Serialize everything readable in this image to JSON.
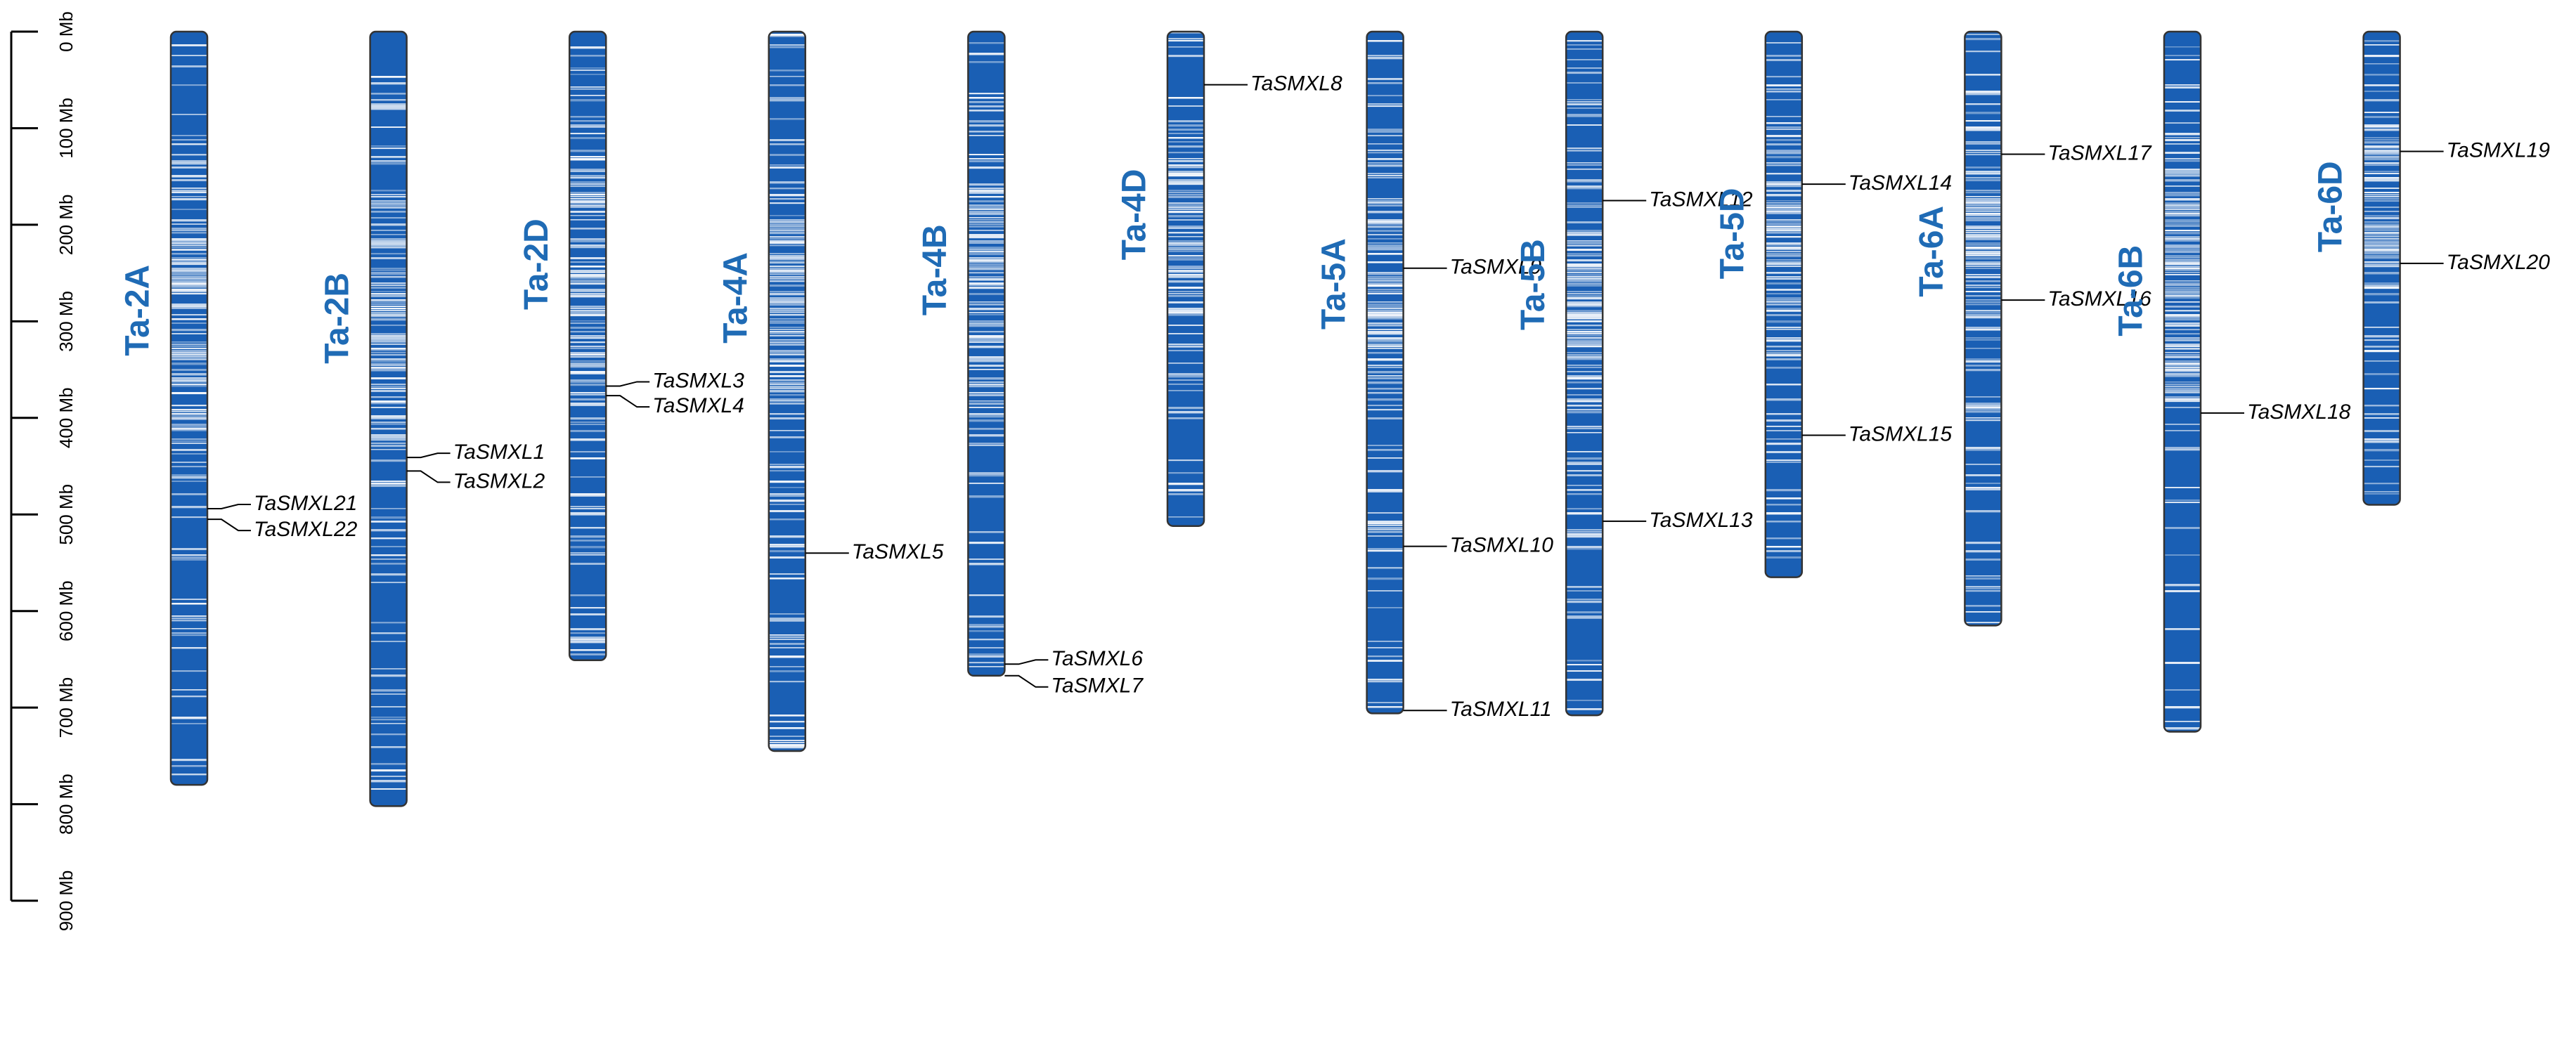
{
  "colors": {
    "label": "#1f6bb5",
    "density_high": "#1a5fb4",
    "density_low": "#ffffff",
    "outline": "#333333",
    "leader": "#000000"
  },
  "axis": {
    "unit": "Mb",
    "max": 900,
    "ticks": [
      {
        "value": 0,
        "label": "0 Mb"
      },
      {
        "value": 100,
        "label": "100 Mb"
      },
      {
        "value": 200,
        "label": "200 Mb"
      },
      {
        "value": 300,
        "label": "300 Mb"
      },
      {
        "value": 400,
        "label": "400 Mb"
      },
      {
        "value": 500,
        "label": "500 Mb"
      },
      {
        "value": 600,
        "label": "600 Mb"
      },
      {
        "value": 700,
        "label": "700 Mb"
      },
      {
        "value": 800,
        "label": "800 Mb"
      },
      {
        "value": 900,
        "label": "900 Mb"
      }
    ]
  },
  "chromosomes": [
    {
      "name": "Ta-2A",
      "length": 780,
      "genes": [
        {
          "name": "TaSMXL21",
          "pos": 494
        },
        {
          "name": "TaSMXL22",
          "pos": 505
        }
      ]
    },
    {
      "name": "Ta-2B",
      "length": 802,
      "genes": [
        {
          "name": "TaSMXL1",
          "pos": 441
        },
        {
          "name": "TaSMXL2",
          "pos": 455
        }
      ]
    },
    {
      "name": "Ta-2D",
      "length": 651,
      "genes": [
        {
          "name": "TaSMXL3",
          "pos": 367
        },
        {
          "name": "TaSMXL4",
          "pos": 377
        }
      ]
    },
    {
      "name": "Ta-4A",
      "length": 745,
      "genes": [
        {
          "name": "TaSMXL5",
          "pos": 540
        }
      ]
    },
    {
      "name": "Ta-4B",
      "length": 667,
      "genes": [
        {
          "name": "TaSMXL6",
          "pos": 655
        },
        {
          "name": "TaSMXL7",
          "pos": 667
        }
      ]
    },
    {
      "name": "Ta-4D",
      "length": 512,
      "genes": [
        {
          "name": "TaSMXL8",
          "pos": 55
        }
      ]
    },
    {
      "name": "Ta-5A",
      "length": 706,
      "genes": [
        {
          "name": "TaSMXL9",
          "pos": 245
        },
        {
          "name": "TaSMXL10",
          "pos": 533
        },
        {
          "name": "TaSMXL11",
          "pos": 703
        }
      ]
    },
    {
      "name": "Ta-5B",
      "length": 708,
      "genes": [
        {
          "name": "TaSMXL12",
          "pos": 175
        },
        {
          "name": "TaSMXL13",
          "pos": 507
        }
      ]
    },
    {
      "name": "Ta-5D",
      "length": 565,
      "genes": [
        {
          "name": "TaSMXL14",
          "pos": 158
        },
        {
          "name": "TaSMXL15",
          "pos": 418
        }
      ]
    },
    {
      "name": "Ta-6A",
      "length": 615,
      "genes": [
        {
          "name": "TaSMXL17",
          "pos": 127
        },
        {
          "name": "TaSMXL16",
          "pos": 278
        }
      ]
    },
    {
      "name": "Ta-6B",
      "length": 725,
      "genes": [
        {
          "name": "TaSMXL18",
          "pos": 395
        }
      ]
    },
    {
      "name": "Ta-6D",
      "length": 490,
      "genes": [
        {
          "name": "TaSMXL19",
          "pos": 124
        },
        {
          "name": "TaSMXL20",
          "pos": 240
        }
      ]
    }
  ]
}
